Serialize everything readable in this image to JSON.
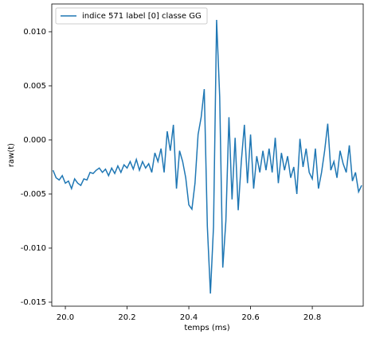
{
  "chart_data": {
    "type": "line",
    "xlabel": "temps (ms)",
    "ylabel": "raw(t)",
    "x": [
      19.96,
      19.97,
      19.98,
      19.99,
      20.0,
      20.01,
      20.02,
      20.03,
      20.04,
      20.05,
      20.06,
      20.07,
      20.08,
      20.09,
      20.1,
      20.11,
      20.12,
      20.13,
      20.14,
      20.15,
      20.16,
      20.17,
      20.18,
      20.19,
      20.2,
      20.21,
      20.22,
      20.23,
      20.24,
      20.25,
      20.26,
      20.27,
      20.28,
      20.29,
      20.3,
      20.31,
      20.32,
      20.33,
      20.34,
      20.35,
      20.36,
      20.37,
      20.38,
      20.39,
      20.4,
      20.41,
      20.42,
      20.43,
      20.44,
      20.45,
      20.46,
      20.47,
      20.48,
      20.49,
      20.5,
      20.51,
      20.52,
      20.53,
      20.54,
      20.55,
      20.56,
      20.57,
      20.58,
      20.59,
      20.6,
      20.61,
      20.62,
      20.63,
      20.64,
      20.65,
      20.66,
      20.67,
      20.68,
      20.69,
      20.7,
      20.71,
      20.72,
      20.73,
      20.74,
      20.75,
      20.76,
      20.77,
      20.78,
      20.79,
      20.8,
      20.81,
      20.82,
      20.83,
      20.84,
      20.85,
      20.86,
      20.87,
      20.88,
      20.89,
      20.9,
      20.91,
      20.92,
      20.93,
      20.94,
      20.95,
      20.96
    ],
    "series": [
      {
        "name": "indice 571 label [0] classe GG",
        "color": "#1f77b4",
        "values": [
          -0.0028,
          -0.0035,
          -0.0037,
          -0.0033,
          -0.004,
          -0.0038,
          -0.0045,
          -0.0036,
          -0.004,
          -0.0042,
          -0.0036,
          -0.0037,
          -0.003,
          -0.0031,
          -0.0028,
          -0.0026,
          -0.003,
          -0.0027,
          -0.0033,
          -0.0026,
          -0.0031,
          -0.0024,
          -0.003,
          -0.0023,
          -0.0026,
          -0.002,
          -0.0027,
          -0.0018,
          -0.0028,
          -0.002,
          -0.0026,
          -0.0022,
          -0.003,
          -0.0012,
          -0.002,
          -0.0008,
          -0.003,
          0.0008,
          -0.001,
          0.0014,
          -0.0045,
          -0.001,
          -0.002,
          -0.0035,
          -0.006,
          -0.0064,
          -0.004,
          0.0005,
          0.0021,
          0.0047,
          -0.008,
          -0.0142,
          -0.008,
          0.0111,
          0.004,
          -0.0118,
          -0.0075,
          0.0021,
          -0.0055,
          0.0002,
          -0.0065,
          -0.002,
          0.0014,
          -0.004,
          0.0005,
          -0.0045,
          -0.0015,
          -0.003,
          -0.001,
          -0.0028,
          -0.0008,
          -0.003,
          0.0002,
          -0.004,
          -0.0012,
          -0.0028,
          -0.0015,
          -0.0035,
          -0.0025,
          -0.005,
          0.0001,
          -0.0025,
          -0.0008,
          -0.003,
          -0.0036,
          -0.0008,
          -0.0045,
          -0.003,
          -0.001,
          0.0015,
          -0.0028,
          -0.002,
          -0.0035,
          -0.001,
          -0.0022,
          -0.003,
          -0.0005,
          -0.0038,
          -0.003,
          -0.0048,
          -0.0042
        ]
      }
    ],
    "xlim": [
      19.956,
      20.965
    ],
    "ylim": [
      -0.01537,
      0.01257
    ],
    "xticks": [
      {
        "value": 20.0,
        "label": "20.0"
      },
      20.2,
      20.4,
      20.6,
      20.8
    ],
    "yticks": [
      -0.015,
      {
        "value": -0.01,
        "label": "-0.010"
      },
      -0.005,
      {
        "value": 0,
        "label": "0.000"
      },
      0.005,
      {
        "value": 0.01,
        "label": "0.010"
      }
    ],
    "grid": false,
    "legend": "upper left"
  }
}
